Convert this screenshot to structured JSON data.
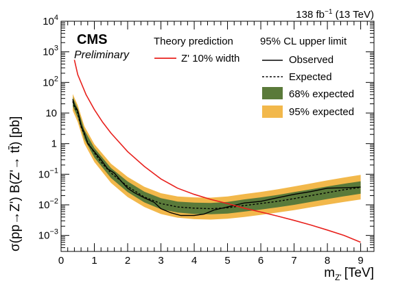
{
  "chart_data": {
    "type": "line",
    "x_axis": {
      "label_main": "m",
      "label_sub": "Z'",
      "label_unit": "[TeV]",
      "range": [
        0,
        9.4
      ],
      "ticks": [
        0,
        1,
        2,
        3,
        4,
        5,
        6,
        7,
        8,
        9
      ],
      "tick_labels": [
        "0",
        "1",
        "2",
        "3",
        "4",
        "5",
        "6",
        "7",
        "8",
        "9"
      ]
    },
    "y_axis": {
      "label": "σ(pp→Z') B(Z'→ tt̄) [pb]",
      "scale": "log",
      "range": [
        0.0003,
        10000
      ],
      "ticks": [
        0.001,
        0.01,
        0.1,
        1,
        10,
        100,
        1000,
        10000
      ],
      "tick_labels": [
        {
          "base": "10",
          "exp": "−3"
        },
        {
          "base": "10",
          "exp": "−2"
        },
        {
          "base": "10",
          "exp": "−1"
        },
        {
          "base": "1",
          "exp": ""
        },
        {
          "base": "10",
          "exp": ""
        },
        {
          "base": "10",
          "exp": "2"
        },
        {
          "base": "10",
          "exp": "3"
        },
        {
          "base": "10",
          "exp": "4"
        }
      ]
    },
    "header": {
      "experiment": "CMS",
      "status": "Preliminary",
      "lumi_value": "138 fb",
      "lumi_exp": "−1",
      "lumi_energy": " (13 TeV)"
    },
    "legend": {
      "theory_title": "Theory prediction",
      "theory_entry": "Z' 10% width",
      "limit_title": "95% CL upper limit",
      "observed": "Observed",
      "expected": "Expected",
      "band68": "68% expected",
      "band95": "95% expected"
    },
    "colors": {
      "theory": "#e8201c",
      "band68": "#5a7a3a",
      "band95": "#f2b84b",
      "observed": "#000000",
      "expected": "#000000"
    },
    "series": {
      "theory": {
        "x": [
          0.4,
          0.5,
          0.75,
          1.0,
          1.25,
          1.5,
          2.0,
          2.5,
          3.0,
          3.5,
          4.0,
          4.5,
          5.0,
          5.5,
          6.0,
          6.5,
          7.0,
          7.5,
          8.0,
          8.5,
          9.0
        ],
        "y": [
          550,
          180,
          40,
          13,
          5.0,
          2.2,
          0.55,
          0.18,
          0.07,
          0.035,
          0.022,
          0.015,
          0.011,
          0.0078,
          0.0058,
          0.0043,
          0.0031,
          0.0022,
          0.0015,
          0.001,
          0.0006
        ]
      },
      "observed": {
        "x": [
          0.35,
          0.4,
          0.5,
          0.6,
          0.7,
          0.8,
          1.0,
          1.2,
          1.4,
          1.6,
          1.8,
          2.0,
          2.2,
          2.5,
          2.8,
          3.0,
          3.3,
          3.6,
          4.0,
          4.3,
          4.6,
          5.0,
          5.5,
          6.0,
          6.5,
          7.0,
          7.5,
          8.0,
          8.5,
          9.0
        ],
        "y": [
          28,
          18,
          12,
          4.0,
          2.2,
          1.0,
          0.55,
          0.3,
          0.15,
          0.11,
          0.06,
          0.035,
          0.025,
          0.017,
          0.012,
          0.0075,
          0.0055,
          0.0045,
          0.0045,
          0.005,
          0.0068,
          0.0085,
          0.0115,
          0.013,
          0.017,
          0.022,
          0.027,
          0.035,
          0.036,
          0.038
        ]
      },
      "expected": {
        "x": [
          0.35,
          0.4,
          0.5,
          0.6,
          0.7,
          0.8,
          1.0,
          1.2,
          1.5,
          2.0,
          2.5,
          3.0,
          3.5,
          4.0,
          4.5,
          5.0,
          5.5,
          6.0,
          6.5,
          7.0,
          7.5,
          8.0,
          8.5,
          9.0
        ],
        "y": [
          24,
          16,
          10,
          3.5,
          2.0,
          1.1,
          0.5,
          0.25,
          0.11,
          0.04,
          0.018,
          0.011,
          0.0085,
          0.0078,
          0.0075,
          0.008,
          0.0095,
          0.011,
          0.013,
          0.016,
          0.02,
          0.025,
          0.031,
          0.037
        ]
      },
      "band68": {
        "x": [
          0.35,
          0.5,
          0.7,
          1.0,
          1.5,
          2.0,
          2.5,
          3.0,
          3.5,
          4.0,
          4.5,
          5.0,
          5.5,
          6.0,
          6.5,
          7.0,
          7.5,
          8.0,
          8.5,
          9.0
        ],
        "lo": [
          17,
          7.0,
          1.4,
          0.35,
          0.075,
          0.026,
          0.012,
          0.0072,
          0.0056,
          0.005,
          0.0049,
          0.0052,
          0.006,
          0.007,
          0.0083,
          0.01,
          0.0125,
          0.0155,
          0.019,
          0.023
        ],
        "hi": [
          33,
          14,
          2.8,
          0.72,
          0.16,
          0.058,
          0.027,
          0.0165,
          0.0128,
          0.0118,
          0.0115,
          0.0125,
          0.015,
          0.0175,
          0.021,
          0.026,
          0.032,
          0.04,
          0.049,
          0.059
        ]
      },
      "band95": {
        "x": [
          0.35,
          0.5,
          0.7,
          1.0,
          1.5,
          2.0,
          2.5,
          3.0,
          3.5,
          4.0,
          4.5,
          5.0,
          5.5,
          6.0,
          6.5,
          7.0,
          7.5,
          8.0,
          8.5,
          9.0
        ],
        "lo": [
          12,
          5.0,
          1.0,
          0.25,
          0.052,
          0.018,
          0.0085,
          0.005,
          0.0038,
          0.0034,
          0.0033,
          0.0035,
          0.004,
          0.0047,
          0.0056,
          0.0067,
          0.0083,
          0.0102,
          0.0124,
          0.015
        ],
        "hi": [
          42,
          18,
          3.7,
          0.96,
          0.22,
          0.082,
          0.039,
          0.024,
          0.0188,
          0.0175,
          0.0172,
          0.0188,
          0.0225,
          0.0265,
          0.032,
          0.04,
          0.05,
          0.063,
          0.078,
          0.095
        ]
      }
    }
  }
}
